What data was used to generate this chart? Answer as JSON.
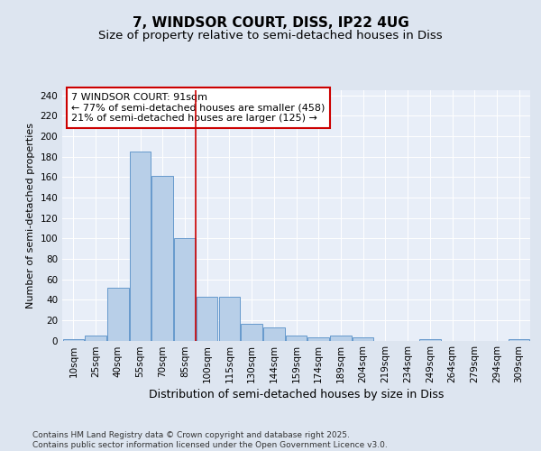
{
  "title1": "7, WINDSOR COURT, DISS, IP22 4UG",
  "title2": "Size of property relative to semi-detached houses in Diss",
  "xlabel": "Distribution of semi-detached houses by size in Diss",
  "ylabel": "Number of semi-detached properties",
  "categories": [
    "10sqm",
    "25sqm",
    "40sqm",
    "55sqm",
    "70sqm",
    "85sqm",
    "100sqm",
    "115sqm",
    "130sqm",
    "144sqm",
    "159sqm",
    "174sqm",
    "189sqm",
    "204sqm",
    "219sqm",
    "234sqm",
    "249sqm",
    "264sqm",
    "279sqm",
    "294sqm",
    "309sqm"
  ],
  "values": [
    1,
    5,
    52,
    185,
    161,
    100,
    43,
    43,
    16,
    13,
    5,
    3,
    5,
    3,
    0,
    0,
    1,
    0,
    0,
    0,
    1
  ],
  "bar_color": "#b8cfe8",
  "bar_edge_color": "#6699cc",
  "vline_color": "#cc0000",
  "vline_x_index": 5,
  "annotation_text": "7 WINDSOR COURT: 91sqm\n← 77% of semi-detached houses are smaller (458)\n21% of semi-detached houses are larger (125) →",
  "annotation_box_color": "#ffffff",
  "annotation_box_edge_color": "#cc0000",
  "ylim": [
    0,
    245
  ],
  "yticks": [
    0,
    20,
    40,
    60,
    80,
    100,
    120,
    140,
    160,
    180,
    200,
    220,
    240
  ],
  "bg_color": "#dde5f0",
  "plot_bg_color": "#e8eef8",
  "footer_text": "Contains HM Land Registry data © Crown copyright and database right 2025.\nContains public sector information licensed under the Open Government Licence v3.0.",
  "title1_fontsize": 11,
  "title2_fontsize": 9.5,
  "xlabel_fontsize": 9,
  "ylabel_fontsize": 8,
  "tick_fontsize": 7.5,
  "ann_fontsize": 8,
  "footer_fontsize": 6.5,
  "grid_color": "#ffffff"
}
